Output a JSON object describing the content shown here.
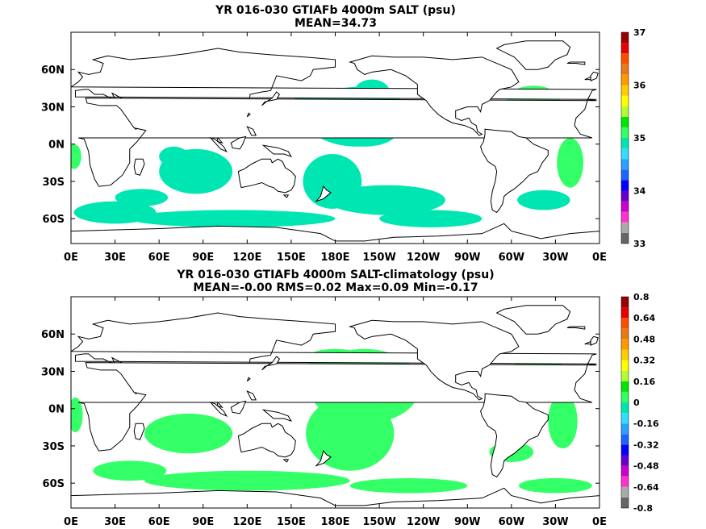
{
  "chart_data": [
    {
      "type": "heatmap",
      "title": "YR 016-030 GTIAFb 4000m SALT (psu)",
      "subtitle": "MEAN=34.73",
      "x_ticks": [
        "0E",
        "30E",
        "60E",
        "90E",
        "120E",
        "150E",
        "180E",
        "150W",
        "120W",
        "90W",
        "60W",
        "30W",
        "0E"
      ],
      "y_ticks": [
        "60N",
        "30N",
        "0N",
        "30S",
        "60S"
      ],
      "y_tick_lat": [
        60,
        30,
        0,
        -30,
        -60
      ],
      "lon_range": [
        0,
        360
      ],
      "lat_range": [
        -80,
        90
      ],
      "colorbar": {
        "range": [
          33,
          37
        ],
        "labels": [
          "37",
          "36",
          "35",
          "34",
          "33"
        ],
        "colors": [
          "#666666",
          "#aaaaaa",
          "#ff33cc",
          "#cc00cc",
          "#6600cc",
          "#0000ff",
          "#1a66ff",
          "#2aa0ff",
          "#33ddff",
          "#00e6b3",
          "#33ff66",
          "#00e600",
          "#b3ff33",
          "#ffff00",
          "#ffcc00",
          "#ff9900",
          "#e67a1a",
          "#ff4d00",
          "#e60000",
          "#990000"
        ]
      },
      "fill_colors": [
        "#00f0ff",
        "#30f0a0"
      ],
      "regions": [
        {
          "value": 34.9,
          "lat": 22,
          "lon": 195,
          "rlat": 24,
          "rlon": 36
        },
        {
          "value": 34.9,
          "lat": 30,
          "lon": 178,
          "rlat": 12,
          "rlon": 18
        },
        {
          "value": 34.9,
          "lat": 42,
          "lon": 205,
          "rlat": 10,
          "rlon": 12
        },
        {
          "value": 34.9,
          "lat": 10,
          "lon": 200,
          "rlat": 12,
          "rlon": 22
        },
        {
          "value": 34.9,
          "lat": -22,
          "lon": 85,
          "rlat": 18,
          "rlon": 25
        },
        {
          "value": 34.9,
          "lat": -10,
          "lon": 70,
          "rlat": 8,
          "rlon": 10
        },
        {
          "value": 34.9,
          "lat": -55,
          "lon": 30,
          "rlat": 9,
          "rlon": 28
        },
        {
          "value": 34.9,
          "lat": -60,
          "lon": 110,
          "rlat": 7,
          "rlon": 70
        },
        {
          "value": 34.9,
          "lat": -43,
          "lon": 48,
          "rlat": 7,
          "rlon": 18
        },
        {
          "value": 34.9,
          "lat": -30,
          "lon": 178,
          "rlat": 22,
          "rlon": 20
        },
        {
          "value": 34.9,
          "lat": -45,
          "lon": 215,
          "rlat": 12,
          "rlon": 40
        },
        {
          "value": 34.9,
          "lat": -60,
          "lon": 245,
          "rlat": 7,
          "rlon": 35
        },
        {
          "value": 34.9,
          "lat": -45,
          "lon": 322,
          "rlat": 8,
          "rlon": 18
        },
        {
          "value": 34.9,
          "lat": 35,
          "lon": 160,
          "rlat": 6,
          "rlon": 8
        },
        {
          "value": 35.0,
          "lat": 35,
          "lon": 315,
          "rlat": 12,
          "rlon": 18
        },
        {
          "value": 35.0,
          "lat": 20,
          "lon": 330,
          "rlat": 14,
          "rlon": 10
        },
        {
          "value": 35.0,
          "lat": -15,
          "lon": 340,
          "rlat": 20,
          "rlon": 9
        },
        {
          "value": 35.0,
          "lat": -10,
          "lon": 2,
          "rlat": 10,
          "rlon": 5
        }
      ]
    },
    {
      "type": "heatmap",
      "title": "YR 016-030 GTIAFb 4000m SALT-climatology (psu)",
      "subtitle": "MEAN=-0.00   RMS=0.02   Max=0.09   Min=-0.17",
      "x_ticks": [
        "0E",
        "30E",
        "60E",
        "90E",
        "120E",
        "150E",
        "180E",
        "150W",
        "120W",
        "90W",
        "60W",
        "30W",
        "0E"
      ],
      "y_ticks": [
        "60N",
        "30N",
        "0N",
        "30S",
        "60S"
      ],
      "y_tick_lat": [
        60,
        30,
        0,
        -30,
        -60
      ],
      "lon_range": [
        0,
        360
      ],
      "lat_range": [
        -80,
        90
      ],
      "colorbar": {
        "range": [
          -0.8,
          0.8
        ],
        "labels": [
          "0.8",
          "0.64",
          "0.48",
          "0.32",
          "0.16",
          "0",
          "-0.16",
          "-0.32",
          "-0.48",
          "-0.64",
          "-0.8"
        ],
        "colors": [
          "#666666",
          "#aaaaaa",
          "#ff33cc",
          "#cc00cc",
          "#6600cc",
          "#0000ff",
          "#1a66ff",
          "#2aa0ff",
          "#33ddff",
          "#00e6b3",
          "#33ff66",
          "#00e600",
          "#b3ff33",
          "#ffff00",
          "#ffcc00",
          "#ff9900",
          "#e67a1a",
          "#ff4d00",
          "#e60000",
          "#990000"
        ]
      },
      "fill_colors": [
        "#30f0a0",
        "#80f080"
      ],
      "regions": [
        {
          "value": 0.0,
          "lat": 18,
          "lon": 200,
          "rlat": 30,
          "rlon": 38
        },
        {
          "value": 0.02,
          "lat": -20,
          "lon": 190,
          "rlat": 30,
          "rlon": 30
        },
        {
          "value": 0.0,
          "lat": 40,
          "lon": 180,
          "rlat": 8,
          "rlon": 20
        },
        {
          "value": 0.02,
          "lat": -20,
          "lon": 80,
          "rlat": 16,
          "rlon": 30
        },
        {
          "value": 0.0,
          "lat": -50,
          "lon": 40,
          "rlat": 8,
          "rlon": 25
        },
        {
          "value": 0.02,
          "lat": -58,
          "lon": 120,
          "rlat": 8,
          "rlon": 70
        },
        {
          "value": 0.0,
          "lat": -62,
          "lon": 230,
          "rlat": 6,
          "rlon": 40
        },
        {
          "value": 0.02,
          "lat": -62,
          "lon": 330,
          "rlat": 6,
          "rlon": 25
        },
        {
          "value": 0.0,
          "lat": 30,
          "lon": 318,
          "rlat": 12,
          "rlon": 18
        },
        {
          "value": 0.02,
          "lat": -10,
          "lon": 335,
          "rlat": 22,
          "rlon": 10
        },
        {
          "value": 0.0,
          "lat": -35,
          "lon": 300,
          "rlat": 8,
          "rlon": 15
        },
        {
          "value": 0.0,
          "lat": -5,
          "lon": 3,
          "rlat": 14,
          "rlon": 5
        }
      ]
    }
  ]
}
